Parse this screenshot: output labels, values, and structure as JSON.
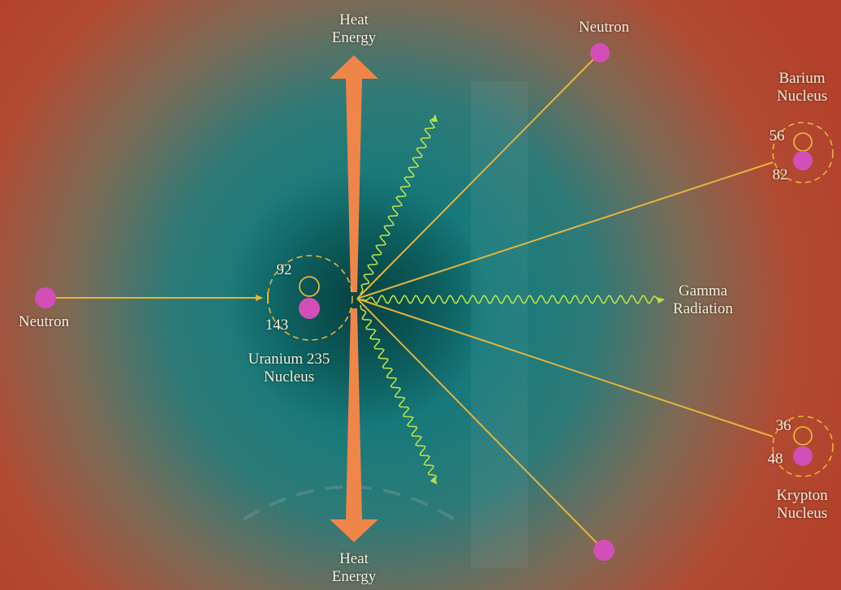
{
  "labels": {
    "heat_top_1": "Heat",
    "heat_top_2": "Energy",
    "heat_bottom_1": "Heat",
    "heat_bottom_2": "Energy",
    "neutron_incoming": "Neutron",
    "neutron_out_top": "Neutron",
    "uranium_1": "Uranium 235",
    "uranium_2": "Nucleus",
    "uranium_protons": "92",
    "uranium_neutrons": "143",
    "barium_1": "Barium",
    "barium_2": "Nucleus",
    "barium_protons": "56",
    "barium_neutrons": "82",
    "krypton_1": "Krypton",
    "krypton_2": "Nucleus",
    "krypton_protons": "36",
    "krypton_neutrons": "48",
    "gamma_1": "Gamma",
    "gamma_2": "Radiation"
  },
  "colors": {
    "arrow": "#f0854a",
    "neutron": "#d24fb8",
    "line": "#e6b43c",
    "wave": "#b7e04a",
    "text": "#f4ecd8",
    "glow_center": "#0f6a6a",
    "background_edge": "#b8452a"
  }
}
